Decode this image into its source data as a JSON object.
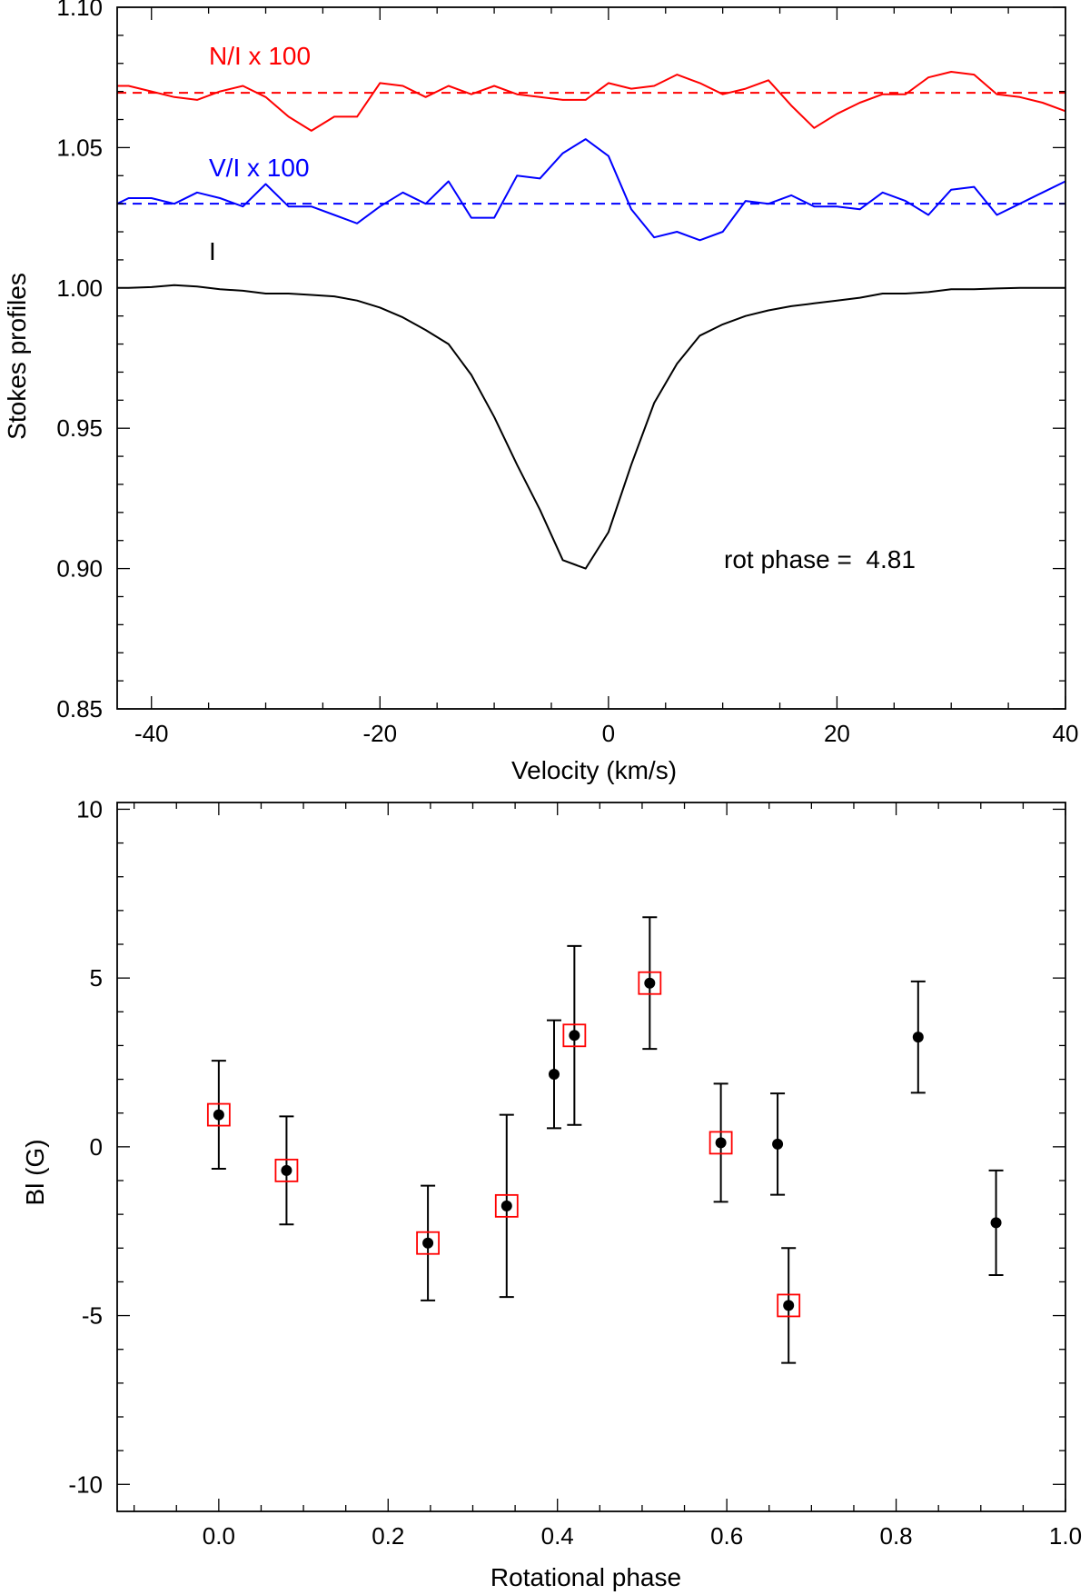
{
  "chart_data": [
    {
      "type": "line",
      "xlabel": "Velocity (km/s)",
      "ylabel": "Stokes profiles",
      "xlim": [
        -43,
        40
      ],
      "ylim": [
        0.85,
        1.1
      ],
      "xticks": [
        -40,
        -20,
        0,
        20,
        40
      ],
      "xtick_labels": [
        "-40",
        "-20",
        "0",
        "20",
        "40"
      ],
      "yticks": [
        0.85,
        0.9,
        0.95,
        1.0,
        1.05,
        1.1
      ],
      "ytick_labels": [
        "0.85",
        "0.90",
        "0.95",
        "1.00",
        "1.05",
        "1.10"
      ],
      "annotation": "rot phase =  4.81",
      "series": [
        {
          "name": "N/I x 100",
          "color": "#ff0000",
          "reference": 1.0695,
          "x": [
            -43,
            -42,
            -40,
            -38,
            -36,
            -34,
            -32,
            -30,
            -28,
            -26,
            -24,
            -22,
            -20,
            -18,
            -16,
            -14,
            -12,
            -10,
            -8,
            -6,
            -4,
            -2,
            0,
            2,
            4,
            6,
            8,
            10,
            12,
            14,
            16,
            18,
            20,
            22,
            24,
            26,
            28,
            30,
            32,
            34,
            36,
            38,
            40
          ],
          "values": [
            1.072,
            1.072,
            1.07,
            1.068,
            1.067,
            1.07,
            1.072,
            1.068,
            1.061,
            1.056,
            1.061,
            1.061,
            1.073,
            1.072,
            1.068,
            1.072,
            1.069,
            1.072,
            1.069,
            1.068,
            1.067,
            1.067,
            1.073,
            1.071,
            1.072,
            1.076,
            1.073,
            1.069,
            1.071,
            1.074,
            1.065,
            1.057,
            1.062,
            1.066,
            1.069,
            1.069,
            1.075,
            1.077,
            1.076,
            1.069,
            1.068,
            1.066,
            1.063
          ]
        },
        {
          "name": "V/I x 100",
          "color": "#0000ff",
          "reference": 1.03,
          "x": [
            -43,
            -42,
            -40,
            -38,
            -36,
            -34,
            -32,
            -30,
            -28,
            -26,
            -24,
            -22,
            -20,
            -18,
            -16,
            -14,
            -12,
            -10,
            -8,
            -6,
            -4,
            -2,
            0,
            2,
            4,
            6,
            8,
            10,
            12,
            14,
            16,
            18,
            20,
            22,
            24,
            26,
            28,
            30,
            32,
            34,
            36,
            38,
            40
          ],
          "values": [
            1.03,
            1.032,
            1.032,
            1.03,
            1.034,
            1.032,
            1.029,
            1.037,
            1.029,
            1.029,
            1.026,
            1.023,
            1.029,
            1.034,
            1.03,
            1.038,
            1.025,
            1.025,
            1.04,
            1.039,
            1.048,
            1.053,
            1.047,
            1.028,
            1.018,
            1.02,
            1.017,
            1.02,
            1.031,
            1.03,
            1.033,
            1.029,
            1.029,
            1.028,
            1.034,
            1.031,
            1.026,
            1.035,
            1.036,
            1.026,
            1.03,
            1.034,
            1.038
          ]
        },
        {
          "name": "I",
          "color": "#000000",
          "x": [
            -43,
            -42,
            -40,
            -38,
            -36,
            -34,
            -32,
            -30,
            -28,
            -26,
            -24,
            -22,
            -20,
            -18,
            -16,
            -14,
            -12,
            -10,
            -8,
            -6,
            -4,
            -2,
            0,
            2,
            4,
            6,
            8,
            10,
            12,
            14,
            16,
            18,
            20,
            22,
            24,
            26,
            28,
            30,
            32,
            34,
            36,
            38,
            40
          ],
          "values": [
            1.0,
            1.0,
            1.0003,
            1.001,
            1.0005,
            0.9995,
            0.999,
            0.998,
            0.998,
            0.9975,
            0.997,
            0.9955,
            0.993,
            0.9895,
            0.985,
            0.98,
            0.969,
            0.954,
            0.937,
            0.921,
            0.903,
            0.9,
            0.913,
            0.937,
            0.959,
            0.973,
            0.983,
            0.987,
            0.99,
            0.992,
            0.9935,
            0.9945,
            0.9955,
            0.9965,
            0.998,
            0.998,
            0.9985,
            0.9995,
            0.9995,
            0.9998,
            1.0,
            1.0,
            1.0
          ]
        }
      ]
    },
    {
      "type": "scatter",
      "xlabel": "Rotational phase",
      "ylabel": "Bl (G)",
      "xlim": [
        -0.12,
        1.0
      ],
      "ylim": [
        -10.8,
        10.2
      ],
      "xticks": [
        0.0,
        0.2,
        0.4,
        0.6,
        0.8,
        1.0
      ],
      "xtick_labels": [
        "0.0",
        "0.2",
        "0.4",
        "0.6",
        "0.8",
        "1.0"
      ],
      "yticks": [
        -10,
        -5,
        0,
        5,
        10
      ],
      "ytick_labels": [
        "-10",
        "-5",
        "0",
        "5",
        "10"
      ],
      "marker_color": "#000000",
      "box_color": "#ff0000",
      "points": [
        {
          "x": 0.0,
          "y": 0.95,
          "err": 1.6,
          "boxed": true
        },
        {
          "x": 0.08,
          "y": -0.7,
          "err": 1.6,
          "boxed": true
        },
        {
          "x": 0.247,
          "y": -2.85,
          "err": 1.7,
          "boxed": true
        },
        {
          "x": 0.34,
          "y": -1.75,
          "err": 2.7,
          "boxed": true
        },
        {
          "x": 0.396,
          "y": 2.15,
          "err": 1.6,
          "boxed": false
        },
        {
          "x": 0.42,
          "y": 3.3,
          "err": 2.65,
          "boxed": true
        },
        {
          "x": 0.509,
          "y": 4.85,
          "err": 1.95,
          "boxed": true
        },
        {
          "x": 0.593,
          "y": 0.12,
          "err": 1.75,
          "boxed": true
        },
        {
          "x": 0.66,
          "y": 0.08,
          "err": 1.5,
          "boxed": false
        },
        {
          "x": 0.673,
          "y": -4.7,
          "err": 1.7,
          "boxed": true
        },
        {
          "x": 0.826,
          "y": 3.25,
          "err": 1.65,
          "boxed": false
        },
        {
          "x": 0.918,
          "y": -2.25,
          "err": 1.55,
          "boxed": false
        }
      ]
    }
  ]
}
